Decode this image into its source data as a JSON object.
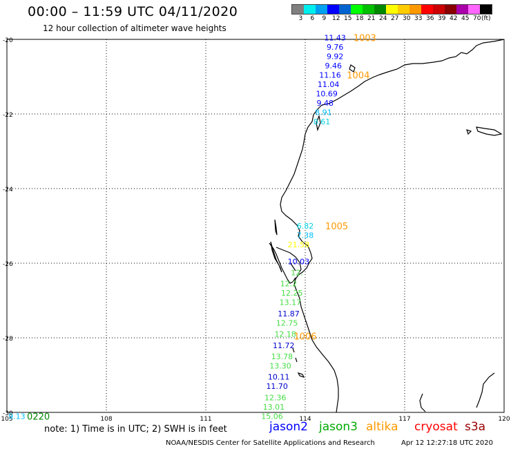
{
  "header": {
    "title": "00:00 – 11:59 UTC 04/11/2020",
    "subtitle": "12 hour collection of altimeter wave heights"
  },
  "legend": {
    "colors": [
      "#808080",
      "#00eeee",
      "#00a0f0",
      "#0000ff",
      "#0064d0",
      "#00ff00",
      "#00c000",
      "#008800",
      "#ffff00",
      "#ffcc00",
      "#ff9900",
      "#ff0000",
      "#cc0000",
      "#880000",
      "#aa00aa",
      "#ff66ff",
      "#000000"
    ],
    "labels": [
      "3",
      "6",
      "9",
      "12",
      "15",
      "18",
      "21",
      "24",
      "27",
      "30",
      "33",
      "36",
      "39",
      "42",
      "45",
      "70",
      "(ft)"
    ]
  },
  "axes": {
    "lat_labels": [
      "-20",
      "-22",
      "-24",
      "-26",
      "-28",
      "-30"
    ],
    "lon_labels": [
      "105",
      "108",
      "111",
      "114",
      "117",
      "120"
    ],
    "lat_range": [
      -30,
      -20
    ],
    "lon_range": [
      105,
      120
    ]
  },
  "observations": [
    {
      "text": "11.43",
      "color": "#0000ff",
      "lon": 114.9,
      "lat": -19.95
    },
    {
      "text": "9.76",
      "color": "#0000ff",
      "lon": 114.9,
      "lat": -20.2
    },
    {
      "text": "9.92",
      "color": "#0000ff",
      "lon": 114.9,
      "lat": -20.45
    },
    {
      "text": "9.46",
      "color": "#0000ff",
      "lon": 114.85,
      "lat": -20.7
    },
    {
      "text": "11.16",
      "color": "#0000ff",
      "lon": 114.75,
      "lat": -20.95
    },
    {
      "text": "11.04",
      "color": "#0000ff",
      "lon": 114.7,
      "lat": -21.2
    },
    {
      "text": "10.69",
      "color": "#0000ff",
      "lon": 114.65,
      "lat": -21.45
    },
    {
      "text": "9.48",
      "color": "#0000ff",
      "lon": 114.6,
      "lat": -21.7
    },
    {
      "text": "8.91",
      "color": "#00bfff",
      "lon": 114.55,
      "lat": -21.95
    },
    {
      "text": "8.61",
      "color": "#00d0e0",
      "lon": 114.5,
      "lat": -22.2
    },
    {
      "text": "6.82",
      "color": "#00d0e0",
      "lon": 114.0,
      "lat": -25.0
    },
    {
      "text": "7.38",
      "color": "#00bfff",
      "lon": 114.0,
      "lat": -25.25
    },
    {
      "text": "21.58",
      "color": "#ffff00",
      "lon": 113.8,
      "lat": -25.5
    },
    {
      "text": "10.03",
      "color": "#0000ff",
      "lon": 113.8,
      "lat": -25.95
    },
    {
      "text": "12.",
      "color": "#44dd44",
      "lon": 113.75,
      "lat": -26.25
    },
    {
      "text": "12.2",
      "color": "#44dd44",
      "lon": 113.5,
      "lat": -26.55
    },
    {
      "text": "12.25",
      "color": "#44dd44",
      "lon": 113.6,
      "lat": -26.8
    },
    {
      "text": "13.17",
      "color": "#44dd44",
      "lon": 113.55,
      "lat": -27.05
    },
    {
      "text": "11.87",
      "color": "#0000cc",
      "lon": 113.5,
      "lat": -27.35
    },
    {
      "text": "12.75",
      "color": "#44dd44",
      "lon": 113.45,
      "lat": -27.6
    },
    {
      "text": "12.18",
      "color": "#44dd44",
      "lon": 113.4,
      "lat": -27.9
    },
    {
      "text": "11.72",
      "color": "#0000cc",
      "lon": 113.35,
      "lat": -28.2
    },
    {
      "text": "13.78",
      "color": "#44dd44",
      "lon": 113.3,
      "lat": -28.5
    },
    {
      "text": "13.30",
      "color": "#44dd44",
      "lon": 113.25,
      "lat": -28.75
    },
    {
      "text": "10.11",
      "color": "#0000cc",
      "lon": 113.2,
      "lat": -29.05
    },
    {
      "text": "11.70",
      "color": "#0000cc",
      "lon": 113.15,
      "lat": -29.3
    },
    {
      "text": "12.36",
      "color": "#44dd44",
      "lon": 113.1,
      "lat": -29.6
    },
    {
      "text": "13.01",
      "color": "#44dd44",
      "lon": 113.05,
      "lat": -29.85
    },
    {
      "text": "15.06",
      "color": "#44dd44",
      "lon": 113.0,
      "lat": -30.1
    },
    {
      "text": "9.13",
      "color": "#00bfff",
      "lon": 105.3,
      "lat": -30.1
    }
  ],
  "time_marks": [
    {
      "text": "1003",
      "color": "#ff9900",
      "lon": 115.8,
      "lat": -19.95
    },
    {
      "text": "1004",
      "color": "#ff9900",
      "lon": 115.6,
      "lat": -20.95
    },
    {
      "text": "1005",
      "color": "#ff9900",
      "lon": 114.95,
      "lat": -25.0
    },
    {
      "text": "1006",
      "color": "#ff9900",
      "lon": 114.0,
      "lat": -27.95
    },
    {
      "text": "0220",
      "color": "#008800",
      "lon": 105.95,
      "lat": -30.1
    }
  ],
  "footer": {
    "note": "note: 1) Time is in UTC; 2) SWH is in feet",
    "satellites": [
      {
        "name": "jason2",
        "color": "#0000ff"
      },
      {
        "name": "jason3",
        "color": "#00aa00"
      },
      {
        "name": "altika",
        "color": "#ff9900"
      },
      {
        "name": "cryosat",
        "color": "#ff0000"
      },
      {
        "name": "s3a",
        "color": "#990000"
      }
    ],
    "credit": "NOAA/NESDIS Center for Satellite Applications and Research",
    "timestamp": "Apr 12 12:27:18 UTC 2020"
  }
}
